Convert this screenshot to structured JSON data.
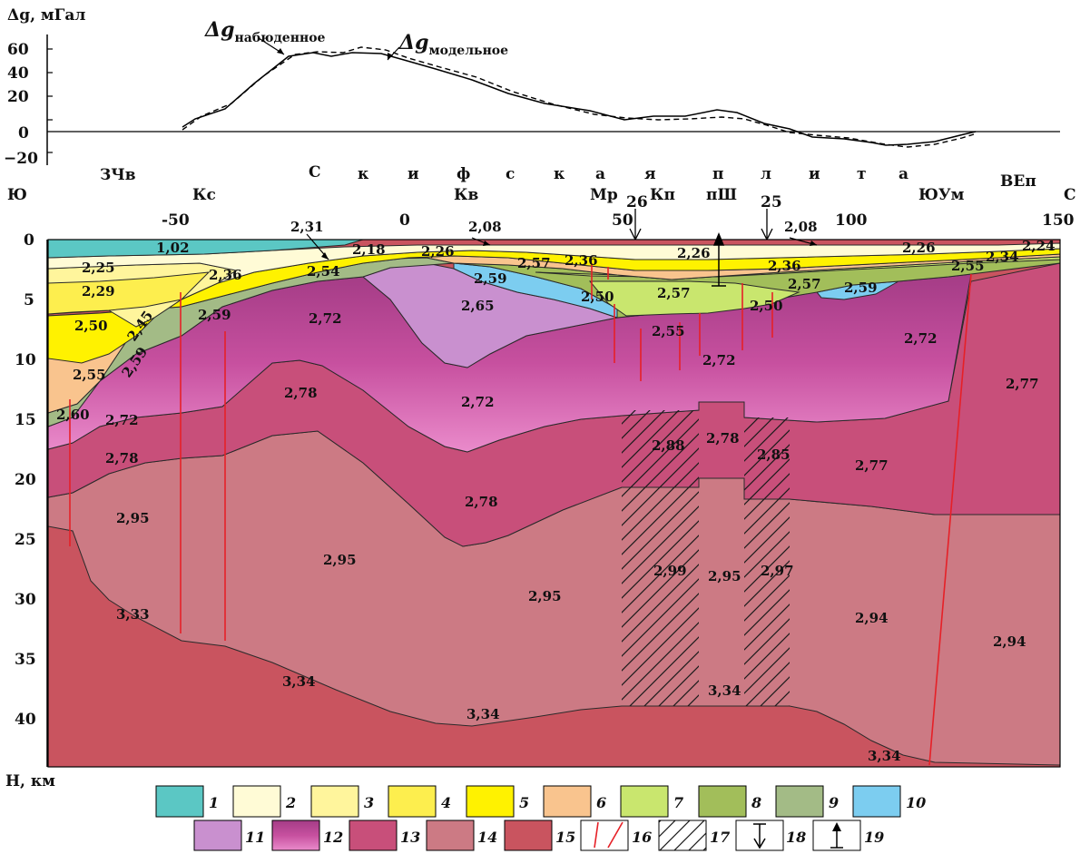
{
  "gravity_profile": {
    "ylabel": "Δg, мГал",
    "yticks": [
      "60",
      "40",
      "20",
      "0",
      "−20"
    ],
    "observed_label_main": "Δg",
    "observed_label_sub": "набюденное",
    "model_label_main": "Δg",
    "model_label_sub": "модельное"
  },
  "section": {
    "left_end": "Ю",
    "right_end": "С",
    "ylabel": "H, км",
    "xticks": [
      "-50",
      "0",
      "50",
      "100",
      "150"
    ],
    "depth_ticks": [
      "0",
      "5",
      "10",
      "15",
      "20",
      "25",
      "30",
      "35",
      "40"
    ],
    "region_letters": [
      "С",
      "к",
      "и",
      "ф",
      "с",
      "к",
      "а",
      "я",
      "п",
      "л",
      "и",
      "т",
      "а"
    ],
    "places": [
      "ЗЧв",
      "Кс",
      "Кв",
      "Мр",
      "Кп",
      "пШ",
      "ЮУм",
      "ВЕп"
    ],
    "well_labels": [
      "26",
      "25"
    ],
    "surface_labels": [
      "2,31",
      "2,08",
      "2,08"
    ],
    "densities": {
      "d1": "1,02",
      "d2": "2,25",
      "d3": "2,29",
      "d4": "2,50",
      "d5": "2,45",
      "d6": "2,55",
      "d7": "2,59",
      "d8": "2,60",
      "d9": "2,72",
      "d10": "2,78",
      "d11": "2,95",
      "d12": "3,33",
      "d13": "2,36",
      "d14": "2,59",
      "d15": "2,54",
      "d16": "2,18",
      "d17": "2,26",
      "d18": "2,72",
      "d19": "2,78",
      "d20": "2,95",
      "d21": "3,34",
      "d22": "2,65",
      "d23": "2,59",
      "d24": "2,57",
      "d25": "2,36",
      "d26": "2,50",
      "d27": "2,72",
      "d28": "2,78",
      "d29": "2,95",
      "d30": "3,34",
      "d31": "2,26",
      "d32": "2,57",
      "d33": "2,55",
      "d34": "2,72",
      "d35": "2,88",
      "d36": "2,78",
      "d37": "2,85",
      "d38": "2,99",
      "d39": "2,95",
      "d40": "2,97",
      "d41": "3,34",
      "d42": "2,36",
      "d43": "2,57",
      "d44": "2,50",
      "d45": "2,59",
      "d46": "2,26",
      "d47": "2,72",
      "d48": "2,77",
      "d49": "2,94",
      "d50": "3,34",
      "d51": "2,55",
      "d52": "2,34",
      "d53": "2,24",
      "d54": "2,77",
      "d55": "2,94"
    }
  },
  "legend": {
    "items": [
      "1",
      "2",
      "3",
      "4",
      "5",
      "6",
      "7",
      "8",
      "9",
      "10",
      "11",
      "12",
      "13",
      "14",
      "15",
      "16",
      "17",
      "18",
      "19"
    ],
    "colors": [
      "#5bc7c4",
      "#fffbd6",
      "#fff59c",
      "#fdee4e",
      "#fff200",
      "#f9c48e",
      "#c9e66e",
      "#a2be5a",
      "#a3bb86",
      "#7ccdf0",
      "#c990cf",
      "#c24a96",
      "#c84f7a",
      "#cc7a84",
      "#c9545f"
    ]
  }
}
